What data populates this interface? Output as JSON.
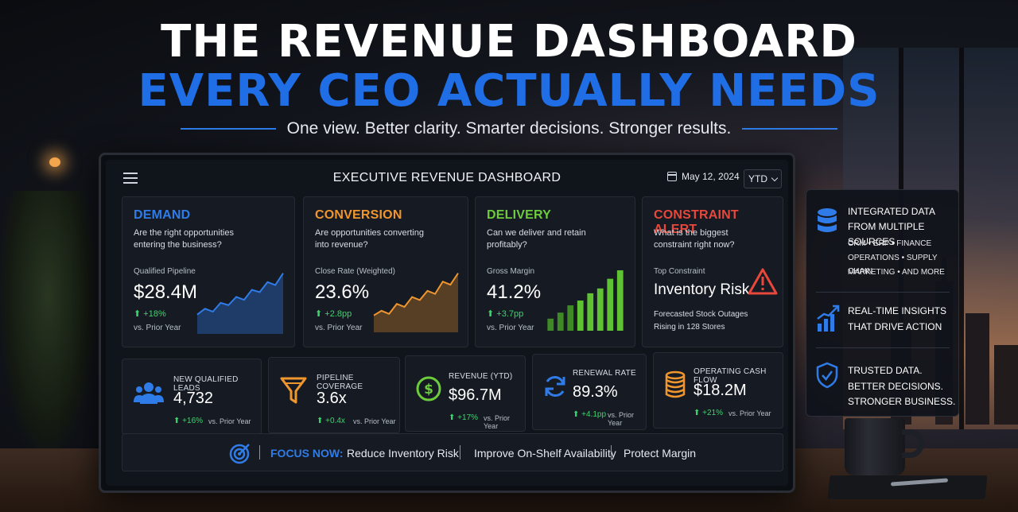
{
  "headline": {
    "line1": "THE REVENUE DASHBOARD",
    "line2": "EVERY CEO ACTUALLY NEEDS",
    "tagline": "One view. Better clarity. Smarter decisions. Stronger results."
  },
  "dashboard": {
    "title": "EXECUTIVE REVENUE DASHBOARD",
    "date": "May 12, 2024",
    "period": "YTD"
  },
  "cards": [
    {
      "title": "DEMAND",
      "color": "#2f7ce8",
      "question": "Are the right opportunities entering the business?",
      "metric_label": "Qualified Pipeline",
      "value": "$28.4M",
      "change": "+18%",
      "sub": "vs. Prior Year"
    },
    {
      "title": "CONVERSION",
      "color": "#f0962e",
      "question": "Are opportunities converting into revenue?",
      "metric_label": "Close Rate (Weighted)",
      "value": "23.6%",
      "change": "+2.8pp",
      "sub": "vs. Prior Year"
    },
    {
      "title": "DELIVERY",
      "color": "#6ccc3c",
      "question": "Can we deliver and retain profitably?",
      "metric_label": "Gross Margin",
      "value": "41.2%",
      "change": "+3.7pp",
      "sub": "vs. Prior Year"
    },
    {
      "title": "CONSTRAINT ALERT",
      "color": "#e8473b",
      "question": "What is the biggest constraint right now?",
      "metric_label": "Top Constraint",
      "value": "Inventory Risk",
      "detail_line1": "Forecasted Stock Outages",
      "detail_line2": "Rising in 128 Stores"
    }
  ],
  "kpis": [
    {
      "label": "NEW QUALIFIED LEADS",
      "value": "4,732",
      "change": "+16%",
      "sub": "vs. Prior Year",
      "icon": "users-icon"
    },
    {
      "label": "PIPELINE COVERAGE",
      "value": "3.6x",
      "change": "+0.4x",
      "sub": "vs. Prior Year",
      "icon": "funnel-icon"
    },
    {
      "label": "REVENUE (YTD)",
      "value": "$96.7M",
      "change": "+17%",
      "sub": "vs. Prior Year",
      "icon": "dollar-icon"
    },
    {
      "label": "RENEWAL RATE",
      "value": "89.3%",
      "change": "+4.1pp",
      "sub": "vs. Prior Year",
      "icon": "refresh-icon"
    },
    {
      "label": "OPERATING CASH FLOW",
      "value": "$18.2M",
      "change": "+21%",
      "sub": "vs. Prior Year",
      "icon": "coins-icon"
    }
  ],
  "focus": {
    "label": "FOCUS NOW:",
    "items": [
      "Reduce Inventory Risk",
      "Improve On-Shelf Availability",
      "Protect Margin"
    ]
  },
  "side_panel": {
    "block1_line1": "INTEGRATED DATA",
    "block1_line2": "FROM MULTIPLE SOURCES",
    "block1_small1": "CRM  •  ERP  •  FINANCE",
    "block1_small2": "OPERATIONS  •  SUPPLY CHAIN",
    "block1_small3": "MARKETING  •  AND MORE",
    "block2_line1": "REAL-TIME INSIGHTS",
    "block2_line2": "THAT DRIVE ACTION",
    "block3_line1": "TRUSTED DATA.",
    "block3_line2": "BETTER DECISIONS.",
    "block3_line3": "STRONGER BUSINESS."
  },
  "spark_demand": [
    3,
    4,
    3.5,
    5,
    4.6,
    6,
    5.5,
    7.2,
    6.8,
    8.5,
    8,
    10
  ],
  "spark_conversion": [
    2,
    2.6,
    2.2,
    3.5,
    3.1,
    4.4,
    4,
    5.2,
    4.8,
    6.4,
    6,
    7.5
  ],
  "bars_delivery": [
    2,
    3,
    4.2,
    5,
    6.2,
    7,
    8.6,
    10
  ]
}
